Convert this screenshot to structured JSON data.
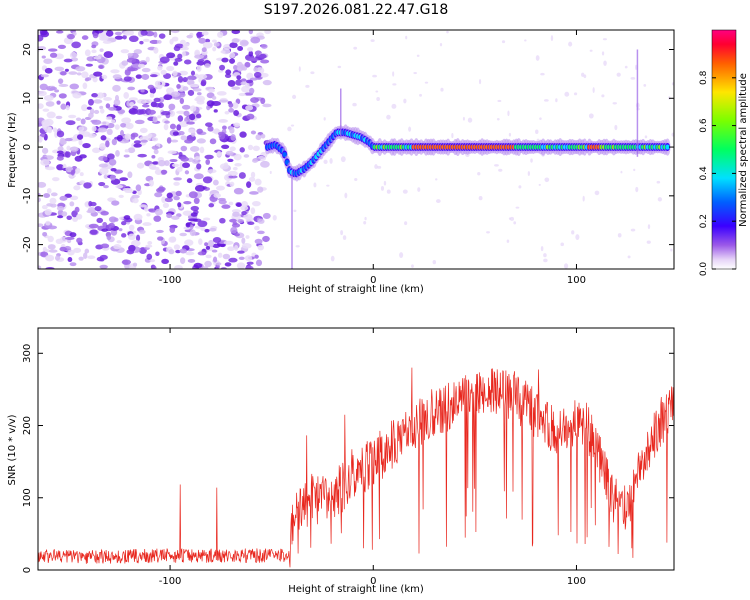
{
  "title": "S197.2026.081.22.47.G18",
  "chart_data": [
    {
      "type": "heatmap",
      "xlabel": "Height of straight line (km)",
      "ylabel": "Frequency (Hz)",
      "xlim": [
        -165,
        148
      ],
      "ylim": [
        -25,
        24
      ],
      "xticks": [
        -100,
        0,
        100
      ],
      "yticks": [
        20,
        10,
        0,
        -10,
        -20
      ],
      "colorbar": {
        "label": "Normalized spectral amplitude",
        "range": [
          0,
          1
        ],
        "ticks": [
          "0.0",
          "0.2",
          "0.4",
          "0.6",
          "0.8"
        ]
      },
      "noise_region_x": [
        -165,
        -52
      ],
      "signal_track": [
        [
          -52,
          0
        ],
        [
          -48,
          0.5
        ],
        [
          -44,
          -1
        ],
        [
          -41,
          -5
        ],
        [
          -38,
          -5.5
        ],
        [
          -34,
          -4.5
        ],
        [
          -30,
          -3
        ],
        [
          -26,
          -1
        ],
        [
          -22,
          1
        ],
        [
          -18,
          3
        ],
        [
          -14,
          3
        ],
        [
          -10,
          2.5
        ],
        [
          -6,
          2
        ],
        [
          -2,
          1
        ],
        [
          0,
          0
        ],
        [
          20,
          0
        ],
        [
          40,
          0
        ],
        [
          60,
          0
        ],
        [
          80,
          0
        ],
        [
          100,
          0
        ],
        [
          120,
          0
        ],
        [
          148,
          0
        ]
      ]
    },
    {
      "type": "line",
      "xlabel": "Height of straight line (km)",
      "ylabel": "SNR (10 * v/v)",
      "xlim": [
        -165,
        148
      ],
      "ylim": [
        0,
        335
      ],
      "xticks": [
        -100,
        0,
        100
      ],
      "yticks": [
        0,
        100,
        200,
        300
      ],
      "series": [
        {
          "name": "SNR",
          "color": "#e8271e",
          "envelope_x": [
            -165,
            -130,
            -100,
            -70,
            -41,
            -40,
            -35,
            -30,
            -25,
            -20,
            -15,
            -10,
            -5,
            0,
            10,
            20,
            30,
            40,
            50,
            60,
            70,
            80,
            85,
            90,
            100,
            105,
            110,
            115,
            120,
            125,
            130,
            135,
            140,
            148
          ],
          "envelope_y": [
            20,
            18,
            20,
            20,
            20,
            60,
            90,
            100,
            95,
            105,
            115,
            135,
            140,
            150,
            175,
            200,
            220,
            230,
            240,
            250,
            240,
            215,
            200,
            190,
            210,
            200,
            170,
            120,
            90,
            80,
            140,
            160,
            200,
            230
          ]
        }
      ]
    }
  ]
}
